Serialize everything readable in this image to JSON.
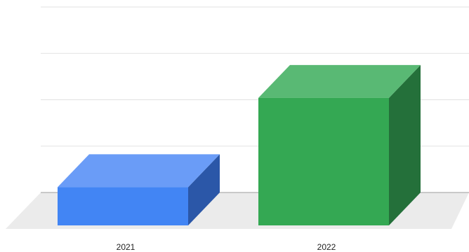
{
  "chart_data": {
    "type": "bar",
    "style": "3d-column",
    "categories": [
      "2021",
      "2022"
    ],
    "values": [
      16.5,
      55
    ],
    "ylim": [
      0,
      80
    ],
    "grid": true,
    "legend": "none",
    "title": "",
    "xlabel": "",
    "ylabel": "",
    "colors": [
      {
        "front": "#4285f4",
        "top": "#6a9cf7",
        "side": "#2b57a8"
      },
      {
        "front": "#34a853",
        "top": "#59b974",
        "side": "#24703a"
      }
    ],
    "gridline_color": "#e2e2e2",
    "floor_color": "#ebebeb"
  }
}
